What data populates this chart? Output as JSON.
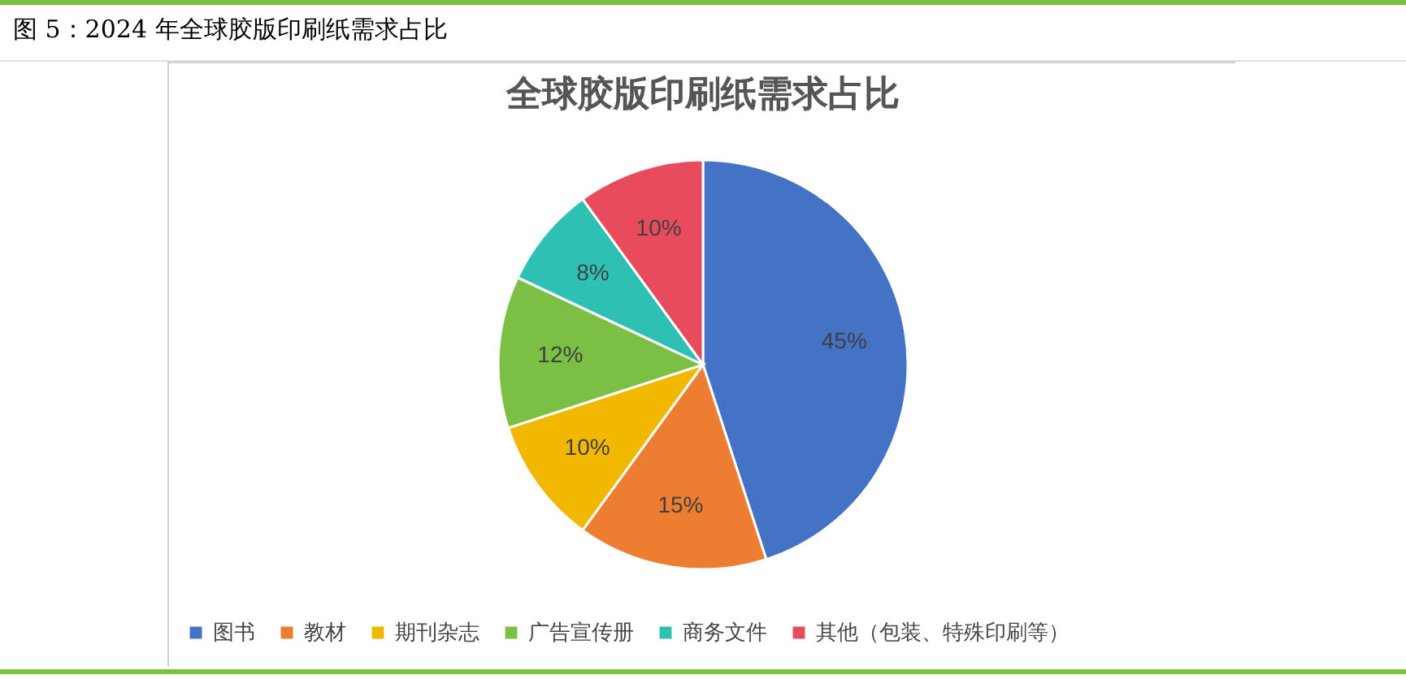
{
  "chart_data": {
    "type": "pie",
    "title": "全球胶版印刷纸需求占比",
    "annotations": [
      "图 5：2024 年全球胶版印刷纸需求占比"
    ],
    "categories": [
      "图书",
      "教材",
      "期刊杂志",
      "广告宣传册",
      "商务文件",
      "其他（包装、特殊印刷等）"
    ],
    "values": [
      45,
      15,
      10,
      12,
      8,
      10
    ],
    "value_labels": [
      "45%",
      "15%",
      "10%",
      "12%",
      "8%",
      "10%"
    ],
    "colors": [
      "#4472c4",
      "#ed7d31",
      "#f2b800",
      "#7bbf44",
      "#2fc0b4",
      "#e84c5c"
    ],
    "legend": "bottom"
  }
}
